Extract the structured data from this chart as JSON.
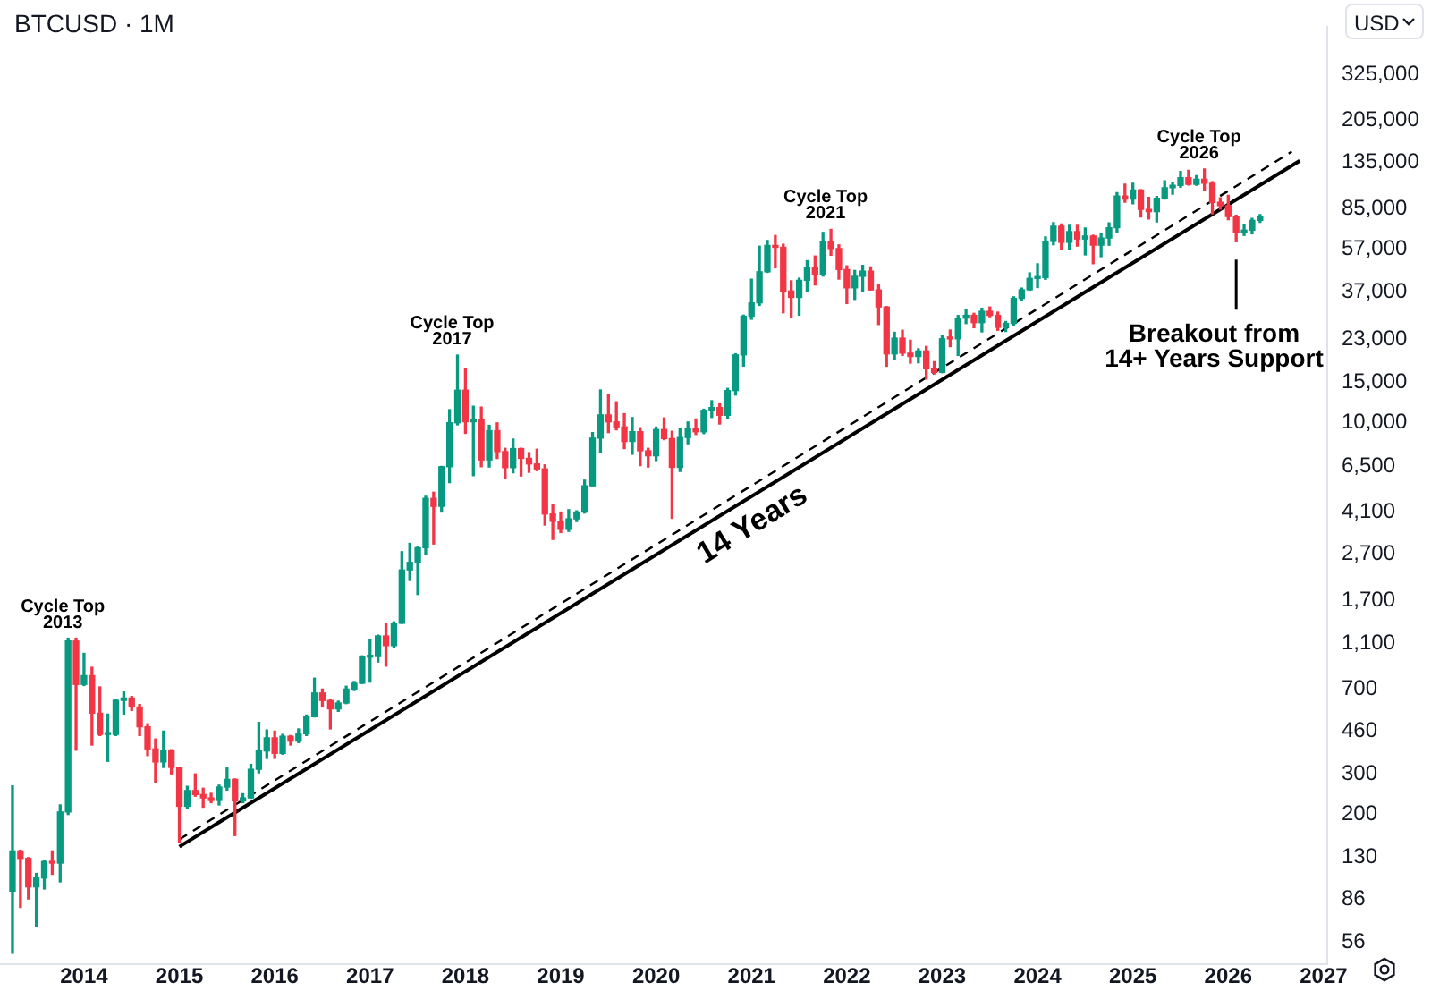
{
  "chart_data": {
    "type": "candlestick",
    "title": "BTCUSD · 1M",
    "ylabel": "USD",
    "x": [
      "2013-04",
      "2013-05",
      "2013-06",
      "2013-07",
      "2013-08",
      "2013-09",
      "2013-10",
      "2013-11",
      "2013-12",
      "2014-01",
      "2014-02",
      "2014-03",
      "2014-04",
      "2014-05",
      "2014-06",
      "2014-07",
      "2014-08",
      "2014-09",
      "2014-10",
      "2014-11",
      "2014-12",
      "2015-01",
      "2015-02",
      "2015-03",
      "2015-04",
      "2015-05",
      "2015-06",
      "2015-07",
      "2015-08",
      "2015-09",
      "2015-10",
      "2015-11",
      "2015-12",
      "2016-01",
      "2016-02",
      "2016-03",
      "2016-04",
      "2016-05",
      "2016-06",
      "2016-07",
      "2016-08",
      "2016-09",
      "2016-10",
      "2016-11",
      "2016-12",
      "2017-01",
      "2017-02",
      "2017-03",
      "2017-04",
      "2017-05",
      "2017-06",
      "2017-07",
      "2017-08",
      "2017-09",
      "2017-10",
      "2017-11",
      "2017-12",
      "2018-01",
      "2018-02",
      "2018-03",
      "2018-04",
      "2018-05",
      "2018-06",
      "2018-07",
      "2018-08",
      "2018-09",
      "2018-10",
      "2018-11",
      "2018-12",
      "2019-01",
      "2019-02",
      "2019-03",
      "2019-04",
      "2019-05",
      "2019-06",
      "2019-07",
      "2019-08",
      "2019-09",
      "2019-10",
      "2019-11",
      "2019-12",
      "2020-01",
      "2020-02",
      "2020-03",
      "2020-04",
      "2020-05",
      "2020-06",
      "2020-07",
      "2020-08",
      "2020-09",
      "2020-10",
      "2020-11",
      "2020-12",
      "2021-01",
      "2021-02",
      "2021-03",
      "2021-04",
      "2021-05",
      "2021-06",
      "2021-07",
      "2021-08",
      "2021-09",
      "2021-10",
      "2021-11",
      "2021-12",
      "2022-01",
      "2022-02",
      "2022-03",
      "2022-04",
      "2022-05",
      "2022-06",
      "2022-07",
      "2022-08",
      "2022-09",
      "2022-10",
      "2022-11",
      "2022-12",
      "2023-01",
      "2023-02",
      "2023-03",
      "2023-04",
      "2023-05",
      "2023-06",
      "2023-07",
      "2023-08",
      "2023-09",
      "2023-10",
      "2023-11",
      "2023-12",
      "2024-01",
      "2024-02",
      "2024-03",
      "2024-04",
      "2024-05",
      "2024-06",
      "2024-07",
      "2024-08",
      "2024-09",
      "2024-10",
      "2024-11",
      "2024-12",
      "2025-01",
      "2025-02",
      "2025-03",
      "2025-04",
      "2025-05",
      "2025-06",
      "2025-07",
      "2025-08",
      "2025-09",
      "2025-10",
      "2025-11",
      "2025-12",
      "2026-01",
      "2026-02",
      "2026-03",
      "2026-04",
      "2026-05"
    ],
    "ohlc": [
      [
        93,
        266,
        50,
        139
      ],
      [
        139,
        140,
        79,
        129
      ],
      [
        129,
        130,
        86,
        97
      ],
      [
        97,
        111,
        65,
        106
      ],
      [
        106,
        126,
        95,
        125
      ],
      [
        125,
        139,
        110,
        123
      ],
      [
        123,
        220,
        102,
        205
      ],
      [
        205,
        1163,
        200,
        1130
      ],
      [
        1130,
        1163,
        380,
        733
      ],
      [
        733,
        1000,
        725,
        800
      ],
      [
        800,
        870,
        400,
        550
      ],
      [
        550,
        715,
        440,
        445
      ],
      [
        445,
        545,
        340,
        445
      ],
      [
        445,
        630,
        440,
        625
      ],
      [
        625,
        680,
        545,
        640
      ],
      [
        640,
        650,
        565,
        585
      ],
      [
        585,
        600,
        440,
        480
      ],
      [
        480,
        495,
        360,
        385
      ],
      [
        385,
        425,
        275,
        338
      ],
      [
        338,
        460,
        320,
        378
      ],
      [
        378,
        382,
        300,
        320
      ],
      [
        320,
        320,
        152,
        217
      ],
      [
        217,
        265,
        212,
        254
      ],
      [
        254,
        300,
        240,
        244
      ],
      [
        244,
        260,
        215,
        236
      ],
      [
        236,
        247,
        225,
        230
      ],
      [
        230,
        268,
        220,
        263
      ],
      [
        263,
        318,
        255,
        284
      ],
      [
        284,
        285,
        162,
        229
      ],
      [
        229,
        246,
        225,
        236
      ],
      [
        236,
        330,
        235,
        314
      ],
      [
        314,
        502,
        303,
        377
      ],
      [
        377,
        465,
        350,
        430
      ],
      [
        430,
        460,
        350,
        368
      ],
      [
        368,
        445,
        365,
        437
      ],
      [
        437,
        440,
        400,
        416
      ],
      [
        416,
        470,
        410,
        448
      ],
      [
        448,
        540,
        440,
        531
      ],
      [
        531,
        780,
        530,
        673
      ],
      [
        673,
        700,
        585,
        624
      ],
      [
        624,
        630,
        470,
        574
      ],
      [
        574,
        620,
        560,
        609
      ],
      [
        609,
        720,
        605,
        700
      ],
      [
        700,
        755,
        690,
        742
      ],
      [
        742,
        975,
        740,
        963
      ],
      [
        963,
        1150,
        750,
        968
      ],
      [
        968,
        1200,
        917,
        1190
      ],
      [
        1190,
        1350,
        880,
        1080
      ],
      [
        1080,
        1370,
        1060,
        1350
      ],
      [
        1350,
        2760,
        1350,
        2300
      ],
      [
        2300,
        3000,
        2070,
        2480
      ],
      [
        2480,
        2900,
        1800,
        2870
      ],
      [
        2870,
        4800,
        2680,
        4700
      ],
      [
        4700,
        5000,
        2980,
        4340
      ],
      [
        4340,
        6470,
        4100,
        6450
      ],
      [
        6450,
        11400,
        5500,
        10000
      ],
      [
        10000,
        19666,
        9800,
        13850
      ],
      [
        13850,
        17200,
        9000,
        10100
      ],
      [
        10100,
        11800,
        5900,
        10300
      ],
      [
        10300,
        11700,
        6450,
        6900
      ],
      [
        6900,
        9750,
        6430,
        9240
      ],
      [
        9240,
        9990,
        7000,
        7500
      ],
      [
        7500,
        7750,
        5750,
        6390
      ],
      [
        6390,
        8500,
        6070,
        7730
      ],
      [
        7730,
        7750,
        5880,
        7010
      ],
      [
        7010,
        7420,
        6100,
        6630
      ],
      [
        6630,
        7680,
        6200,
        6310
      ],
      [
        6310,
        6570,
        3600,
        4020
      ],
      [
        4020,
        4400,
        3120,
        3740
      ],
      [
        3740,
        4100,
        3340,
        3450
      ],
      [
        3450,
        4200,
        3380,
        3830
      ],
      [
        3830,
        4150,
        3730,
        4100
      ],
      [
        4100,
        5640,
        4060,
        5330
      ],
      [
        5330,
        9070,
        5330,
        8580
      ],
      [
        8580,
        13880,
        7450,
        10820
      ],
      [
        10820,
        13200,
        9070,
        10090
      ],
      [
        10090,
        12330,
        9320,
        9600
      ],
      [
        9600,
        10950,
        7730,
        8300
      ],
      [
        8300,
        10540,
        7300,
        9150
      ],
      [
        9150,
        9520,
        6520,
        7560
      ],
      [
        7560,
        7750,
        6430,
        7190
      ],
      [
        7190,
        9580,
        6860,
        9350
      ],
      [
        9350,
        10500,
        8450,
        8540
      ],
      [
        8540,
        9190,
        3850,
        6410
      ],
      [
        6410,
        9480,
        6150,
        8630
      ],
      [
        8630,
        10080,
        8110,
        9450
      ],
      [
        9450,
        10390,
        8900,
        9140
      ],
      [
        9140,
        11450,
        8980,
        11330
      ],
      [
        11330,
        12470,
        10550,
        11650
      ],
      [
        11650,
        12080,
        9880,
        10780
      ],
      [
        10780,
        14100,
        10400,
        13800
      ],
      [
        13800,
        19920,
        13200,
        19700
      ],
      [
        19700,
        29300,
        17600,
        28990
      ],
      [
        28990,
        41950,
        28130,
        33110
      ],
      [
        33110,
        58350,
        32300,
        45200
      ],
      [
        45200,
        61790,
        44950,
        58800
      ],
      [
        58800,
        64900,
        47000,
        57700
      ],
      [
        57700,
        59500,
        30000,
        37300
      ],
      [
        37300,
        41300,
        28800,
        35000
      ],
      [
        35000,
        42400,
        29300,
        41500
      ],
      [
        41500,
        50500,
        37300,
        47100
      ],
      [
        47100,
        52900,
        39600,
        43800
      ],
      [
        43800,
        66980,
        43300,
        61300
      ],
      [
        61300,
        69000,
        53300,
        57000
      ],
      [
        57000,
        59100,
        42000,
        46200
      ],
      [
        46200,
        47950,
        32900,
        38500
      ],
      [
        38500,
        45800,
        34300,
        43200
      ],
      [
        43200,
        48200,
        37200,
        45500
      ],
      [
        45500,
        47450,
        37700,
        37700
      ],
      [
        37700,
        39900,
        26700,
        31800
      ],
      [
        31800,
        31900,
        17600,
        19900
      ],
      [
        19900,
        24700,
        18800,
        23300
      ],
      [
        23300,
        25200,
        19600,
        20050
      ],
      [
        20050,
        22800,
        18150,
        19400
      ],
      [
        19400,
        20950,
        18200,
        20500
      ],
      [
        20500,
        21450,
        15480,
        17150
      ],
      [
        17150,
        18400,
        16300,
        16550
      ],
      [
        16550,
        23950,
        16500,
        23150
      ],
      [
        23150,
        25250,
        21400,
        23130
      ],
      [
        23130,
        29200,
        19600,
        28450
      ],
      [
        28450,
        31000,
        26950,
        29250
      ],
      [
        29250,
        29850,
        25850,
        27200
      ],
      [
        27200,
        31400,
        24800,
        30450
      ],
      [
        30450,
        31800,
        28850,
        29250
      ],
      [
        29250,
        30200,
        25200,
        25950
      ],
      [
        25950,
        27500,
        24900,
        27000
      ],
      [
        27000,
        35200,
        26550,
        34650
      ],
      [
        34650,
        38400,
        34100,
        37750
      ],
      [
        37750,
        44700,
        37600,
        42300
      ],
      [
        42300,
        48950,
        38600,
        42600
      ],
      [
        42600,
        64000,
        41900,
        61200
      ],
      [
        61200,
        73800,
        59200,
        71300
      ],
      [
        71300,
        72800,
        56500,
        60650
      ],
      [
        60650,
        71950,
        56600,
        67500
      ],
      [
        67500,
        71950,
        58400,
        62700
      ],
      [
        62700,
        70000,
        53500,
        64600
      ],
      [
        64600,
        65100,
        49000,
        58950
      ],
      [
        58950,
        66500,
        52550,
        63300
      ],
      [
        63300,
        73600,
        58900,
        70200
      ],
      [
        70200,
        99600,
        66800,
        96400
      ],
      [
        96400,
        108300,
        90500,
        93400
      ],
      [
        93400,
        109300,
        89200,
        102400
      ],
      [
        102400,
        102500,
        78200,
        84300
      ],
      [
        84300,
        95000,
        76600,
        82500
      ],
      [
        82500,
        95800,
        74400,
        94200
      ],
      [
        94200,
        112000,
        93400,
        104600
      ],
      [
        104600,
        110400,
        98200,
        107100
      ],
      [
        107100,
        123200,
        105100,
        115700
      ],
      [
        115700,
        124400,
        107400,
        108200
      ],
      [
        108200,
        117900,
        107300,
        114000
      ],
      [
        114000,
        126200,
        102000,
        109500
      ],
      [
        109500,
        111000,
        80600,
        90400
      ],
      [
        90400,
        94600,
        84400,
        87500
      ],
      [
        87500,
        97000,
        76000,
        78500
      ],
      [
        78500,
        79500,
        61000,
        67000
      ],
      [
        67000,
        72000,
        65000,
        68500
      ],
      [
        68500,
        77000,
        66000,
        75500
      ],
      [
        75500,
        80000,
        74000,
        78000
      ]
    ],
    "series": [
      {
        "type": "line",
        "x": [
          "2015-01",
          "2026-10"
        ],
        "values": [
          145,
          137000
        ],
        "color": "#000000",
        "line_style": "solid"
      },
      {
        "type": "line",
        "x": [
          "2015-01",
          "2026-09"
        ],
        "values": [
          156,
          150000
        ],
        "color": "#000000",
        "line_style": "dashed"
      }
    ],
    "annotations": [
      {
        "text": "Cycle Top\n2013",
        "x": "2013-11",
        "y": 1163
      },
      {
        "text": "Cycle Top\n2017",
        "x": "2017-12",
        "y": 19666
      },
      {
        "text": "Cycle Top\n2021",
        "x": "2021-11",
        "y": 69000
      },
      {
        "text": "Cycle Top\n2026",
        "x": "2025-10",
        "y": 126200
      },
      "14 Years",
      "Breakout from\n14+ Years Support"
    ],
    "xlim": [
      "2013-02-14",
      "2027-01-15"
    ],
    "xticks": [
      "2014",
      "2015",
      "2016",
      "2017",
      "2018",
      "2019",
      "2020",
      "2021",
      "2022",
      "2023",
      "2024",
      "2025",
      "2026",
      "2027"
    ],
    "ylim": [
      45,
      520000
    ],
    "yticks": [
      56,
      86,
      130,
      200,
      300,
      460,
      700,
      {
        "value": 1100,
        "label": "1,100"
      },
      {
        "value": 1700,
        "label": "1,700"
      },
      {
        "value": 2700,
        "label": "2,700"
      },
      {
        "value": 4100,
        "label": "4,100"
      },
      {
        "value": 6500,
        "label": "6,500"
      },
      {
        "value": 10000,
        "label": "10,000"
      },
      {
        "value": 15000,
        "label": "15,000"
      },
      {
        "value": 23000,
        "label": "23,000"
      },
      {
        "value": 37000,
        "label": "37,000"
      },
      {
        "value": 57000,
        "label": "57,000"
      },
      {
        "value": 85000,
        "label": "85,000"
      },
      {
        "value": 135000,
        "label": "135,000"
      },
      {
        "value": 205000,
        "label": "205,000"
      },
      {
        "value": 325000,
        "label": "325,000"
      }
    ],
    "log": true,
    "grid": false,
    "legend": false
  }
}
